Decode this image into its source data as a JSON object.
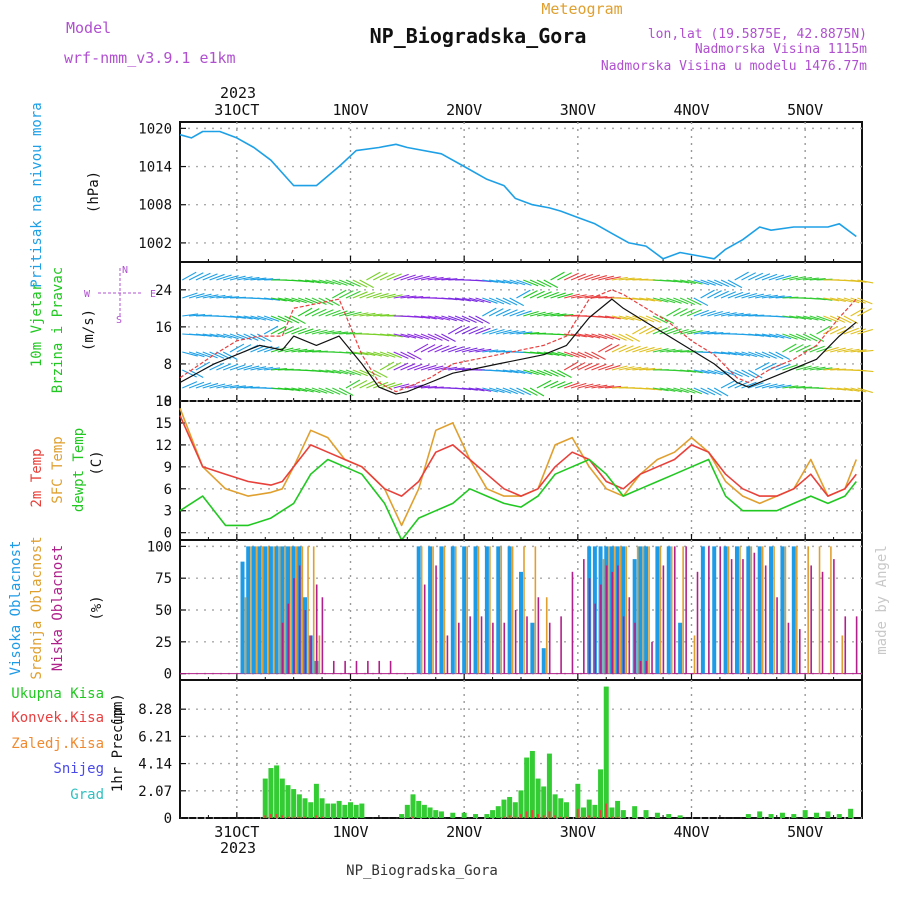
{
  "header": {
    "model_label": "Model",
    "model_name": "wrf-nmm_v3.9.1 e1km",
    "product": "Meteogram",
    "station": "NP_Biogradska_Gora",
    "lonlat": "lon,lat (19.5875E, 42.8875N)",
    "altitude": "Nadmorska Visina 1115m",
    "model_altitude": "Nadmorska Visina u modelu 1476.77m",
    "footer_station": "NP_Biogradska_Gora",
    "watermark": "made by Angel"
  },
  "colors": {
    "pressure": "#1ea0e6",
    "t2m": "#e8403a",
    "sfc": "#e0a030",
    "dewpt": "#22c822",
    "high_cloud": "#1e9be6",
    "mid_cloud": "#e0a030",
    "low_cloud": "#b0208a",
    "precip_total": "#33cc33",
    "precip_conv": "#e84040",
    "precip_frozen": "#f08a30",
    "snow": "#4a4ae8",
    "grad": "#30c0c0",
    "label_green": "#22c822",
    "label_purple": "#b050d0",
    "label_blue": "#1ea0e6",
    "label_orange": "#e0a030",
    "label_red": "#e8403a"
  },
  "chart_data": [
    {
      "type": "line",
      "panel": "pressure",
      "ylabel_title": "Pritisak na nivou mora",
      "yunit": "(hPa)",
      "ylim": [
        999,
        1021
      ],
      "yticks": [
        1002,
        1008,
        1014,
        1020
      ],
      "x_days": [
        0,
        0.1,
        0.2,
        0.35,
        0.5,
        0.65,
        0.8,
        1.0,
        1.2,
        1.4,
        1.55,
        1.75,
        1.9,
        2.0,
        2.3,
        2.5,
        2.7,
        2.85,
        2.95,
        3.1,
        3.25,
        3.35,
        3.5,
        3.65,
        3.8,
        3.95,
        4.1,
        4.25,
        4.4,
        4.55,
        4.7,
        4.8,
        4.95,
        5.1,
        5.2,
        5.4,
        5.55,
        5.7,
        5.8,
        5.95
      ],
      "series": [
        {
          "values": [
            1019,
            1018.5,
            1019.5,
            1019.5,
            1018.5,
            1017,
            1015,
            1011,
            1011,
            1014,
            1016.5,
            1017,
            1017.5,
            1017,
            1016,
            1014,
            1012,
            1011,
            1009,
            1008,
            1007.5,
            1007,
            1006,
            1005,
            1003.5,
            1002,
            1001.5,
            999.5,
            1000.5,
            1000,
            999.5,
            1001,
            1002.5,
            1004.5,
            1004,
            1004.5,
            1004.5,
            1004.5,
            1005,
            1003
          ]
        }
      ]
    },
    {
      "type": "line",
      "panel": "wind",
      "ylabel_title": "10m Vjetar",
      "ylabel_sub": "Brzina i Pravac",
      "yunit": "(m/s)",
      "ylim": [
        0,
        30
      ],
      "yticks": [
        0,
        8,
        16,
        24
      ],
      "compass": [
        "N",
        "W",
        "E",
        "S"
      ],
      "x_days": [
        0,
        0.3,
        0.5,
        0.7,
        0.9,
        1.0,
        1.2,
        1.4,
        1.6,
        1.75,
        1.9,
        2.0,
        2.2,
        2.4,
        2.6,
        2.8,
        3.0,
        3.2,
        3.4,
        3.6,
        3.8,
        3.9,
        4.1,
        4.3,
        4.5,
        4.7,
        4.9,
        5.0,
        5.2,
        5.4,
        5.6,
        5.8,
        5.95
      ],
      "series": [
        {
          "name": "speed",
          "values": [
            4,
            8,
            10,
            12,
            11,
            14,
            12,
            14,
            8,
            3,
            1.5,
            2,
            4,
            6,
            7,
            8,
            9,
            10,
            12,
            18,
            22,
            20,
            17,
            14,
            11,
            8,
            4,
            3,
            5,
            7,
            9,
            14,
            17
          ]
        },
        {
          "name": "gust",
          "values": [
            5,
            10,
            13,
            14,
            14,
            20,
            21,
            22,
            10,
            4,
            2,
            3,
            5,
            8,
            9,
            10,
            11,
            12,
            14,
            22,
            24,
            23,
            20,
            17,
            13,
            10,
            5,
            4,
            7,
            9,
            12,
            18,
            22
          ]
        }
      ]
    },
    {
      "type": "line",
      "panel": "temperature",
      "ylabel_a": "2m Temp",
      "ylabel_b": "SFC Temp",
      "ylabel_c": "dewpt Temp",
      "yunit": "(C)",
      "ylim": [
        -1,
        18
      ],
      "yticks": [
        0,
        3,
        6,
        9,
        12,
        15,
        18
      ],
      "x_days": [
        0,
        0.2,
        0.4,
        0.6,
        0.8,
        0.9,
        1.0,
        1.15,
        1.3,
        1.45,
        1.6,
        1.8,
        1.95,
        2.1,
        2.25,
        2.4,
        2.55,
        2.7,
        2.85,
        3.0,
        3.15,
        3.3,
        3.45,
        3.6,
        3.75,
        3.9,
        4.05,
        4.2,
        4.35,
        4.5,
        4.65,
        4.8,
        4.95,
        5.1,
        5.25,
        5.4,
        5.55,
        5.7,
        5.85,
        5.95
      ],
      "series": [
        {
          "name": "2m Temp",
          "values": [
            16,
            9,
            8,
            7,
            6.5,
            7,
            9,
            12,
            11,
            10,
            9,
            6,
            5,
            7,
            11,
            12,
            10,
            8,
            6,
            5,
            6,
            9,
            11,
            10,
            7,
            6,
            8,
            9,
            10,
            12,
            11,
            8,
            6,
            5,
            5,
            6,
            8,
            5,
            6,
            8
          ]
        },
        {
          "name": "SFC Temp",
          "values": [
            17,
            9,
            6,
            5,
            5.5,
            6,
            9,
            14,
            13,
            10,
            9,
            6,
            1,
            6,
            14,
            15,
            10,
            6,
            5,
            5,
            6,
            12,
            13,
            9,
            6,
            5,
            8,
            10,
            11,
            13,
            11,
            7,
            5,
            4,
            5,
            6,
            10,
            5,
            6,
            10
          ]
        },
        {
          "name": "dewpt Temp",
          "values": [
            3,
            5,
            1,
            1,
            2,
            3,
            4,
            8,
            10,
            9,
            8,
            4,
            -1,
            2,
            3,
            4,
            6,
            5,
            4,
            3.5,
            5,
            8,
            9,
            10,
            8,
            5,
            6,
            7,
            8,
            9,
            10,
            5,
            3,
            3,
            3,
            4,
            5,
            4,
            5,
            7
          ]
        }
      ]
    },
    {
      "type": "bar",
      "panel": "clouds",
      "ylabel_a": "Visoka Oblacnost",
      "ylabel_b": "Srednja Oblacnost",
      "ylabel_c": "Niska Oblacnost",
      "yunit": "(%)",
      "ylim": [
        -5,
        105
      ],
      "yticks": [
        0,
        25,
        50,
        75,
        100
      ],
      "x_days": [
        0.55,
        0.6,
        0.65,
        0.7,
        0.75,
        0.8,
        0.85,
        0.9,
        0.95,
        1.0,
        1.05,
        1.1,
        1.15,
        1.2,
        1.3,
        1.4,
        1.5,
        1.6,
        1.7,
        1.8,
        2.1,
        2.2,
        2.3,
        2.4,
        2.5,
        2.6,
        2.7,
        2.8,
        2.9,
        3.0,
        3.1,
        3.2,
        3.3,
        3.4,
        3.5,
        3.55,
        3.6,
        3.65,
        3.7,
        3.75,
        3.8,
        3.85,
        3.9,
        3.95,
        4.0,
        4.05,
        4.1,
        4.2,
        4.3,
        4.4,
        4.5,
        4.6,
        4.7,
        4.8,
        4.9,
        5.0,
        5.1,
        5.2,
        5.3,
        5.4,
        5.5,
        5.6,
        5.7,
        5.8,
        5.9
      ],
      "series": [
        {
          "name": "Visoka Oblacnost",
          "values": [
            88,
            100,
            100,
            100,
            100,
            100,
            100,
            100,
            100,
            100,
            100,
            60,
            30,
            10,
            0,
            0,
            0,
            0,
            0,
            0,
            100,
            100,
            100,
            100,
            100,
            100,
            100,
            100,
            100,
            80,
            40,
            20,
            0,
            0,
            0,
            0,
            100,
            100,
            100,
            100,
            100,
            100,
            100,
            0,
            90,
            100,
            100,
            100,
            100,
            40,
            0,
            100,
            100,
            100,
            100,
            100,
            100,
            100,
            100,
            100,
            0,
            0,
            0,
            0,
            0
          ]
        },
        {
          "name": "Srednja Oblacnost",
          "values": [
            60,
            100,
            100,
            100,
            100,
            100,
            100,
            100,
            100,
            100,
            100,
            100,
            100,
            30,
            0,
            0,
            0,
            0,
            0,
            0,
            100,
            100,
            100,
            100,
            100,
            100,
            100,
            100,
            100,
            100,
            100,
            60,
            0,
            0,
            0,
            0,
            0,
            0,
            90,
            100,
            100,
            100,
            100,
            0,
            100,
            100,
            100,
            100,
            100,
            100,
            30,
            0,
            0,
            100,
            100,
            100,
            100,
            100,
            100,
            100,
            100,
            100,
            100,
            30,
            0
          ]
        },
        {
          "name": "Niska Oblacnost",
          "values": [
            0,
            0,
            0,
            0,
            0,
            0,
            40,
            55,
            75,
            85,
            50,
            30,
            70,
            60,
            10,
            10,
            10,
            10,
            10,
            10,
            70,
            85,
            30,
            40,
            45,
            45,
            40,
            40,
            50,
            45,
            60,
            40,
            45,
            80,
            90,
            75,
            55,
            70,
            85,
            80,
            85,
            45,
            60,
            40,
            10,
            10,
            25,
            85,
            100,
            100,
            80,
            100,
            100,
            90,
            90,
            95,
            85,
            60,
            40,
            35,
            85,
            80,
            90,
            45,
            45
          ]
        }
      ]
    },
    {
      "type": "bar",
      "panel": "precipitation",
      "ylabel": "1hr Precip",
      "yunit": "(mm)",
      "legend": [
        "Ukupna Kisa",
        "Konvek.Kisa",
        "Zaledj.Kisa",
        "Snijeg",
        "Grad"
      ],
      "ylim": [
        0,
        10.5
      ],
      "yticks": [
        0,
        2.07,
        4.14,
        6.21,
        8.28
      ],
      "x_days": [
        0.75,
        0.8,
        0.85,
        0.9,
        0.95,
        1.0,
        1.05,
        1.1,
        1.15,
        1.2,
        1.25,
        1.3,
        1.35,
        1.4,
        1.45,
        1.5,
        1.55,
        1.6,
        1.95,
        2.0,
        2.05,
        2.1,
        2.15,
        2.2,
        2.25,
        2.3,
        2.4,
        2.5,
        2.6,
        2.7,
        2.75,
        2.8,
        2.85,
        2.9,
        2.95,
        3.0,
        3.05,
        3.1,
        3.15,
        3.2,
        3.25,
        3.3,
        3.35,
        3.4,
        3.5,
        3.55,
        3.6,
        3.65,
        3.7,
        3.75,
        3.8,
        3.85,
        3.9,
        4.0,
        4.1,
        4.2,
        4.3,
        4.4,
        5.0,
        5.1,
        5.2,
        5.3,
        5.4,
        5.5,
        5.6,
        5.7,
        5.8,
        5.9
      ],
      "series": [
        {
          "name": "Ukupna Kisa",
          "values": [
            3.0,
            3.8,
            4.0,
            3.0,
            2.5,
            2.2,
            1.8,
            1.5,
            1.2,
            2.6,
            1.5,
            1.1,
            1.1,
            1.3,
            1.0,
            1.2,
            1.0,
            1.1,
            0.3,
            1.0,
            1.8,
            1.3,
            1.0,
            0.8,
            0.6,
            0.5,
            0.4,
            0.4,
            0.3,
            0.3,
            0.6,
            0.9,
            1.4,
            1.6,
            1.2,
            2.1,
            4.6,
            5.1,
            3.0,
            2.4,
            4.9,
            1.8,
            1.5,
            1.2,
            2.6,
            0.8,
            1.4,
            1.0,
            3.7,
            10.0,
            0.8,
            1.3,
            0.6,
            0.9,
            0.6,
            0.4,
            0.3,
            0.2,
            0.3,
            0.5,
            0.3,
            0.4,
            0.3,
            0.6,
            0.4,
            0.5,
            0.3,
            0.7
          ]
        },
        {
          "name": "Konvek.Kisa",
          "values": [
            0.2,
            0.3,
            0.3,
            0.2,
            0.1,
            0.1,
            0.1,
            0.1,
            0.0,
            0.2,
            0.1,
            0.0,
            0.0,
            0.0,
            0.0,
            0.0,
            0.0,
            0.0,
            0.0,
            0.0,
            0.1,
            0.0,
            0.0,
            0.0,
            0.0,
            0.0,
            0.0,
            0.0,
            0.0,
            0.0,
            0.0,
            0.0,
            0.1,
            0.2,
            0.1,
            0.3,
            0.5,
            0.6,
            0.3,
            0.2,
            0.5,
            0.2,
            0.1,
            0.1,
            0.7,
            0.1,
            0.2,
            0.1,
            0.6,
            1.1,
            0.1,
            0.1,
            0.0,
            0.0,
            0.0,
            0.0,
            0.0,
            0.0,
            0.0,
            0.0,
            0.0,
            0.0,
            0.0,
            0.0,
            0.0,
            0.0,
            0.0,
            0.0
          ]
        }
      ]
    }
  ],
  "xaxis": {
    "date_ticks": [
      {
        "day": 0.5,
        "label": "31OCT"
      },
      {
        "day": 1.5,
        "label": "1NOV"
      },
      {
        "day": 2.5,
        "label": "2NOV"
      },
      {
        "day": 3.5,
        "label": "3NOV"
      },
      {
        "day": 4.5,
        "label": "4NOV"
      },
      {
        "day": 5.5,
        "label": "5NOV"
      }
    ],
    "year": "2023",
    "xlim_days": [
      0,
      6
    ]
  }
}
